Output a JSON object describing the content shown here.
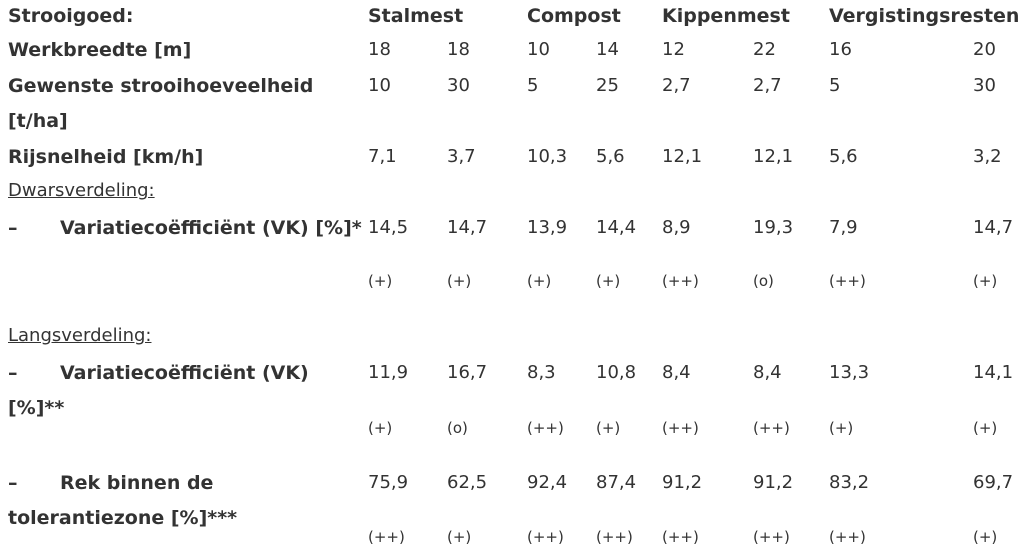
{
  "header": {
    "label": "Strooigoed:",
    "groups": [
      "Stalmest",
      "Compost",
      "Kippenmest",
      "Vergistingsresten"
    ]
  },
  "sections": [
    "Dwarsverdeling:",
    "Langsverdeling:"
  ],
  "rows": [
    {
      "label_lines": [
        "Werkbreedte [m]"
      ],
      "values": [
        "18",
        "18",
        "10",
        "14",
        "12",
        "22",
        "16",
        "20"
      ]
    },
    {
      "label_lines": [
        "Gewenste strooihoeveelheid",
        "[t/ha]"
      ],
      "values": [
        "10",
        "30",
        "5",
        "25",
        "2,7",
        "2,7",
        "5",
        "30"
      ]
    },
    {
      "label_lines": [
        "Rijsnelheid [km/h]"
      ],
      "values": [
        "7,1",
        "3,7",
        "10,3",
        "5,6",
        "12,1",
        "12,1",
        "5,6",
        "3,2"
      ]
    },
    {
      "bullet": "–",
      "label_lines": [
        "Variatiecoëfficiënt (VK) [%]*"
      ],
      "values": [
        "14,5",
        "14,7",
        "13,9",
        "14,4",
        "8,9",
        "19,3",
        "7,9",
        "14,7"
      ],
      "ratings": [
        "(+)",
        "(+)",
        "(+)",
        "(+)",
        "(++)",
        "(o)",
        "(++)",
        "(+)"
      ]
    },
    {
      "bullet": "–",
      "label_lines": [
        "Variatiecoëfficiënt (VK)",
        "[%]**"
      ],
      "values": [
        "11,9",
        "16,7",
        "8,3",
        "10,8",
        "8,4",
        "8,4",
        "13,3",
        "14,1"
      ],
      "ratings": [
        "(+)",
        "(o)",
        "(++)",
        "(+)",
        "(++)",
        "(++)",
        "(+)",
        "(+)"
      ]
    },
    {
      "bullet": "–",
      "label_lines": [
        "Rek binnen de",
        "tolerantiezone [%]***"
      ],
      "values": [
        "75,9",
        "62,5",
        "92,4",
        "87,4",
        "91,2",
        "91,2",
        "83,2",
        "69,7"
      ],
      "ratings": [
        "(++)",
        "(+)",
        "(++)",
        "(++)",
        "(++)",
        "(++)",
        "(++)",
        "(+)"
      ]
    }
  ]
}
